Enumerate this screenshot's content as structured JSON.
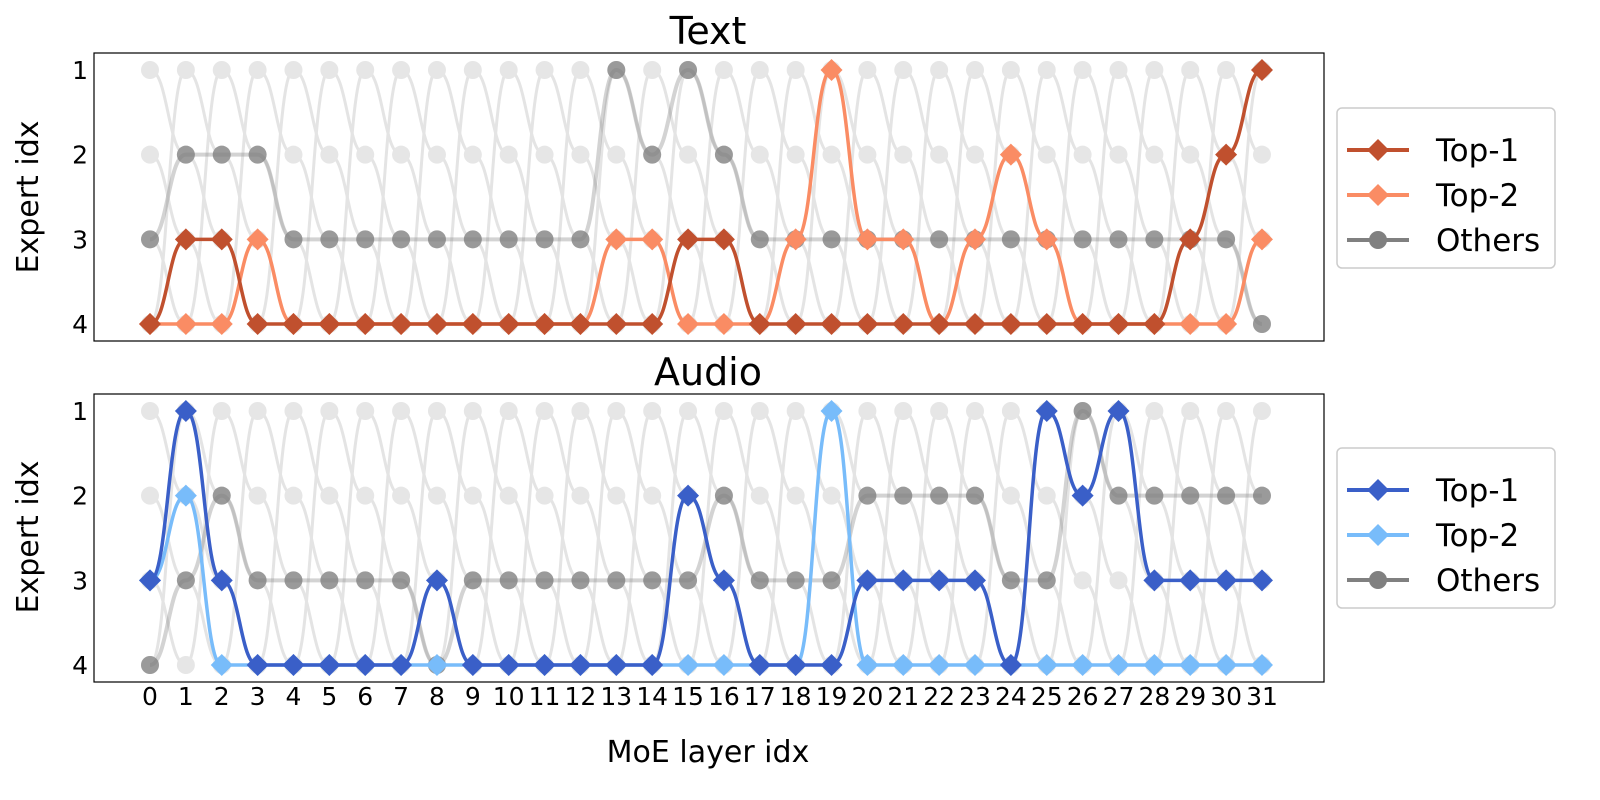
{
  "xlabel": "MoE layer idx",
  "chart_data": [
    {
      "type": "line",
      "title": "Text",
      "ylabel": "Expert idx",
      "x": [
        0,
        1,
        2,
        3,
        4,
        5,
        6,
        7,
        8,
        9,
        10,
        11,
        12,
        13,
        14,
        15,
        16,
        17,
        18,
        19,
        20,
        21,
        22,
        23,
        24,
        25,
        26,
        27,
        28,
        29,
        30,
        31
      ],
      "yticks": [
        1,
        2,
        3,
        4
      ],
      "colors": {
        "top1": "#c0502e",
        "top2": "#fa8c64",
        "others": "#808080"
      },
      "series": [
        {
          "name": "Top-1",
          "values": [
            4,
            3,
            3,
            4,
            4,
            4,
            4,
            4,
            4,
            4,
            4,
            4,
            4,
            4,
            4,
            3,
            3,
            4,
            4,
            4,
            4,
            4,
            4,
            4,
            4,
            4,
            4,
            4,
            4,
            3,
            2,
            1
          ]
        },
        {
          "name": "Top-2",
          "values": [
            4,
            4,
            4,
            3,
            4,
            4,
            4,
            4,
            4,
            4,
            4,
            4,
            4,
            3,
            3,
            4,
            4,
            4,
            3,
            1,
            3,
            3,
            4,
            3,
            2,
            3,
            4,
            4,
            4,
            4,
            4,
            3
          ]
        },
        {
          "name": "Others",
          "values": [
            3,
            2,
            2,
            2,
            3,
            3,
            3,
            3,
            3,
            3,
            3,
            3,
            3,
            1,
            2,
            1,
            2,
            3,
            3,
            3,
            3,
            3,
            3,
            3,
            3,
            3,
            3,
            3,
            3,
            3,
            3,
            4
          ]
        }
      ],
      "legend": [
        "Top-1",
        "Top-2",
        "Others"
      ],
      "legend_position": "right"
    },
    {
      "type": "line",
      "title": "Audio",
      "ylabel": "Expert idx",
      "x": [
        0,
        1,
        2,
        3,
        4,
        5,
        6,
        7,
        8,
        9,
        10,
        11,
        12,
        13,
        14,
        15,
        16,
        17,
        18,
        19,
        20,
        21,
        22,
        23,
        24,
        25,
        26,
        27,
        28,
        29,
        30,
        31
      ],
      "yticks": [
        1,
        2,
        3,
        4
      ],
      "colors": {
        "top1": "#3a5fc8",
        "top2": "#78bcfa",
        "others": "#808080"
      },
      "series": [
        {
          "name": "Top-1",
          "values": [
            3,
            1,
            3,
            4,
            4,
            4,
            4,
            4,
            3,
            4,
            4,
            4,
            4,
            4,
            4,
            2,
            3,
            4,
            4,
            4,
            3,
            3,
            3,
            3,
            4,
            1,
            2,
            1,
            3,
            3,
            3,
            3
          ]
        },
        {
          "name": "Top-2",
          "values": [
            3,
            2,
            4,
            4,
            4,
            4,
            4,
            4,
            4,
            4,
            4,
            4,
            4,
            4,
            4,
            4,
            4,
            4,
            4,
            1,
            4,
            4,
            4,
            4,
            4,
            4,
            4,
            4,
            4,
            4,
            4,
            4
          ]
        },
        {
          "name": "Others",
          "values": [
            4,
            3,
            2,
            3,
            3,
            3,
            3,
            3,
            4,
            3,
            3,
            3,
            3,
            3,
            3,
            3,
            2,
            3,
            3,
            3,
            2,
            2,
            2,
            2,
            3,
            3,
            1,
            2,
            2,
            2,
            2,
            2
          ]
        }
      ],
      "legend": [
        "Top-1",
        "Top-2",
        "Others"
      ],
      "legend_position": "right"
    }
  ]
}
